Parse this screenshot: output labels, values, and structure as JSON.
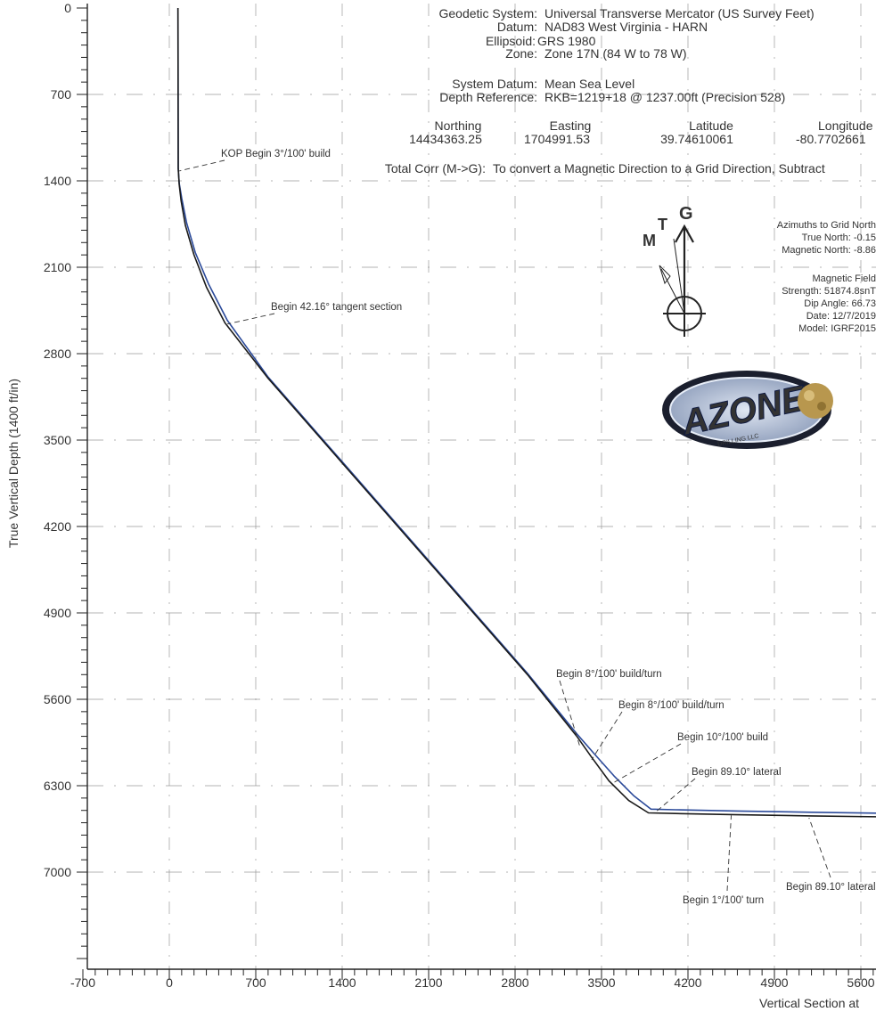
{
  "chart_data": {
    "type": "line",
    "xlabel": "Vertical Section at",
    "ylabel": "True Vertical Depth (1400 ft/in)",
    "xlim": [
      -700,
      5950
    ],
    "ylim": [
      0,
      8200
    ],
    "y_inverted": true,
    "x_ticks": [
      -700,
      0,
      700,
      1400,
      2100,
      2800,
      3500,
      4200,
      4900,
      5600
    ],
    "y_ticks": [
      0,
      700,
      1400,
      2100,
      2800,
      3500,
      4200,
      4900,
      5600,
      6300,
      7000
    ],
    "grid": "dashed",
    "series": [
      {
        "color": "#1a1a1a",
        "x": [
          70,
          72,
          80,
          95,
          130,
          200,
          300,
          450,
          800,
          1500,
          2200,
          2900,
          3300,
          3420,
          3560,
          3720,
          3880,
          4100,
          4600,
          5200,
          5950
        ],
        "y": [
          0,
          1300,
          1430,
          1560,
          1760,
          2000,
          2260,
          2550,
          3000,
          3800,
          4600,
          5400,
          5900,
          6070,
          6260,
          6420,
          6520,
          6525,
          6535,
          6545,
          6555
        ]
      },
      {
        "color": "#2b4a9a",
        "x": [
          70,
          72,
          80,
          100,
          140,
          210,
          320,
          470,
          800,
          1500,
          2200,
          2900,
          3300,
          3440,
          3600,
          3760,
          3900,
          4100,
          4600,
          5200,
          5950
        ],
        "y": [
          0,
          1300,
          1420,
          1540,
          1740,
          1980,
          2240,
          2530,
          2990,
          3790,
          4590,
          5390,
          5880,
          6040,
          6220,
          6380,
          6490,
          6495,
          6505,
          6515,
          6525
        ]
      }
    ],
    "annotations": [
      {
        "text": "KOP Begin 3°/100' build",
        "x": 80,
        "y": 1320
      },
      {
        "text": "Begin 42.16° tangent section",
        "x": 470,
        "y": 2560
      },
      {
        "text": "Begin 8°/100' build/turn",
        "x": 3330,
        "y": 6000
      },
      {
        "text": "Begin 8°/100' build/turn",
        "x": 3420,
        "y": 6090
      },
      {
        "text": "Begin 10°/100' build",
        "x": 3590,
        "y": 6280
      },
      {
        "text": "Begin 89.10° lateral",
        "x": 3930,
        "y": 6520
      },
      {
        "text": "Begin 1°/100' turn",
        "x": 4550,
        "y": 6540
      },
      {
        "text": "Begin 89.10° lateral",
        "x": 5180,
        "y": 6560
      }
    ]
  },
  "info_block": {
    "geodetic_label": "Geodetic System:",
    "geodetic_value": "Universal Transverse Mercator (US Survey Feet)",
    "datum_label": "Datum:",
    "datum_value": "NAD83 West Virginia - HARN",
    "ellipsoid_label": "Ellipsoid:",
    "ellipsoid_value": "GRS 1980",
    "zone_label": "Zone:",
    "zone_value": "Zone 17N (84 W to 78 W)",
    "system_datum_label": "System Datum:",
    "system_datum_value": "Mean Sea Level",
    "depth_ref_label": "Depth Reference:",
    "depth_ref_value": "RKB=1219+18 @ 1237.00ft (Precision 528)",
    "northing_label": "Northing",
    "northing_value": "14434363.25",
    "easting_label": "Easting",
    "easting_value": "1704991.53",
    "latitude_label": "Latitude",
    "latitude_value": "39.74610061",
    "longitude_label": "Longitude",
    "longitude_value": "-80.7702661",
    "total_corr_label": "Total Corr (M->G):",
    "total_corr_value": "To convert a Magnetic Direction to a Grid Direction, Subtract"
  },
  "north_arrow": {
    "g_label": "G",
    "t_label": "T",
    "m_label": "M",
    "label_color": "#2b4a9a"
  },
  "azimuth_block": {
    "title": "Azimuths to Grid North",
    "true_north": "True North: -0.15",
    "magnetic_north": "Magnetic North: -8.86"
  },
  "magnetic_block": {
    "title": "Magnetic Field",
    "strength": "Strength: 51874.8snT",
    "dip_angle": "Dip Angle: 66.73",
    "date": "Date: 12/7/2019",
    "model": "Model: IGRF2015"
  },
  "logo": {
    "text": "AZONE",
    "sub": "DRILLING LLC"
  }
}
